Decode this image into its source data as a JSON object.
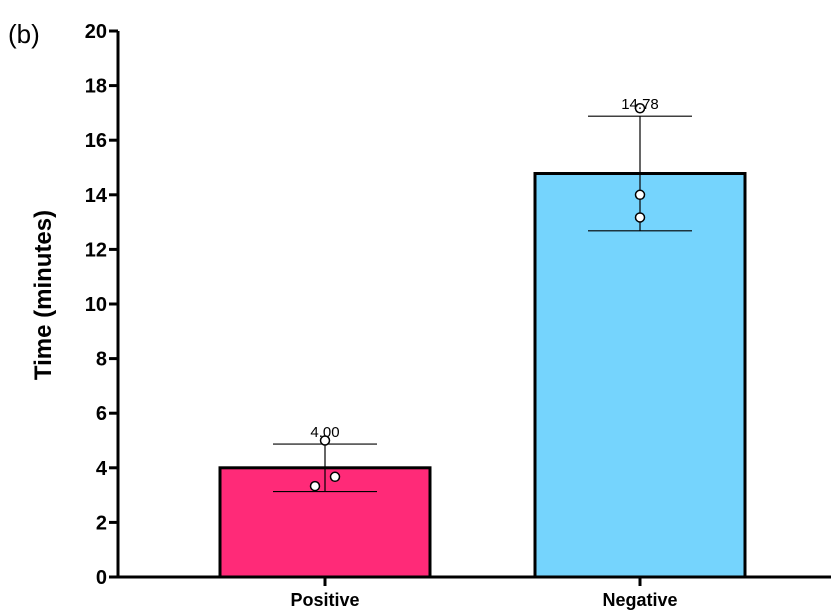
{
  "chart_data": {
    "type": "bar",
    "panel_label": "(b)",
    "categories": [
      "Positive",
      "Negative"
    ],
    "values": [
      4.0,
      14.78
    ],
    "value_labels": [
      "4.00",
      "14.78"
    ],
    "error_bars": [
      {
        "low": 3.13,
        "high": 4.87
      },
      {
        "low": 12.68,
        "high": 16.88
      }
    ],
    "points": [
      [
        5.0,
        3.67,
        3.33
      ],
      [
        17.17,
        14.0,
        13.17
      ]
    ],
    "colors": [
      "#FF2A78",
      "#75D4FD"
    ],
    "ylabel": "Time (minutes)",
    "xlabel": "",
    "ylim": [
      0,
      20
    ],
    "yticks": [
      "0",
      "2",
      "4",
      "6",
      "8",
      "10",
      "12",
      "14",
      "16",
      "18",
      "20"
    ],
    "grid": false
  }
}
